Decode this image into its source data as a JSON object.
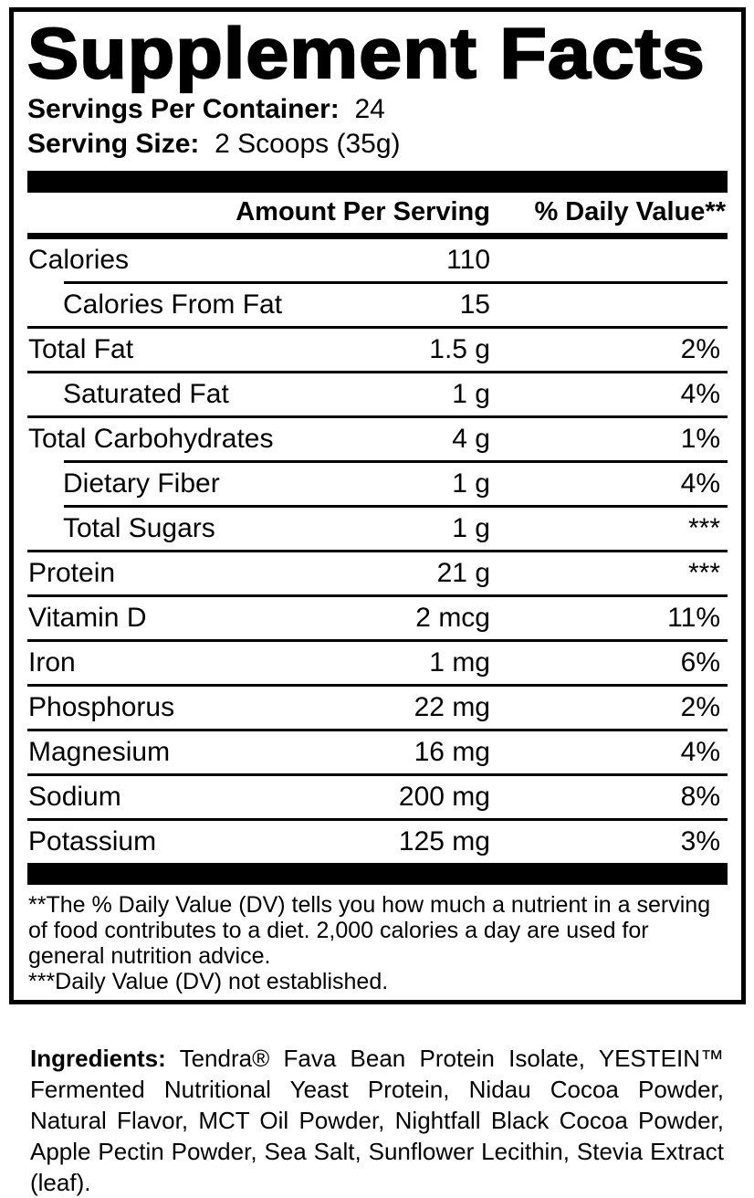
{
  "colors": {
    "ink": "#000000",
    "background": "#ffffff"
  },
  "supplement_facts": {
    "title": "Supplement Facts",
    "servings_per_container": {
      "label": "Servings Per Container:",
      "value": "24"
    },
    "serving_size": {
      "label": "Serving Size:",
      "value": "2 Scoops (35g)"
    },
    "header": {
      "amount": "Amount Per Serving",
      "daily_value": "% Daily Value**"
    },
    "rows": [
      {
        "name": "Calories",
        "amount": "110",
        "daily_value": ""
      },
      {
        "name": "Calories From Fat",
        "amount": "15",
        "daily_value": ""
      },
      {
        "name": "Total Fat",
        "amount": "1.5 g",
        "daily_value": "2%"
      },
      {
        "name": "Saturated Fat",
        "amount": "1 g",
        "daily_value": "4%"
      },
      {
        "name": "Total Carbohydrates",
        "amount": "4 g",
        "daily_value": "1%"
      },
      {
        "name": "Dietary Fiber",
        "amount": "1 g",
        "daily_value": "4%"
      },
      {
        "name": "Total Sugars",
        "amount": "1 g",
        "daily_value": "***"
      },
      {
        "name": "Protein",
        "amount": "21 g",
        "daily_value": "***"
      },
      {
        "name": "Vitamin D",
        "amount": "2 mcg",
        "daily_value": "11%"
      },
      {
        "name": "Iron",
        "amount": "1 mg",
        "daily_value": "6%"
      },
      {
        "name": "Phosphorus",
        "amount": "22 mg",
        "daily_value": "2%"
      },
      {
        "name": "Magnesium",
        "amount": "16 mg",
        "daily_value": "4%"
      },
      {
        "name": "Sodium",
        "amount": "200 mg",
        "daily_value": "8%"
      },
      {
        "name": "Potassium",
        "amount": "125 mg",
        "daily_value": "3%"
      }
    ],
    "footnotes": {
      "daily_value_note": "**The % Daily Value (DV) tells you how much a nutrient in a serving of food contributes to a diet. 2,000 calories a day are used for general nutrition advice.",
      "not_established_note": "***Daily Value (DV) not established."
    }
  },
  "ingredients": {
    "label": "Ingredients:",
    "text": " Tendra® Fava Bean Protein Isolate, YESTEIN™ Fermented Nutritional Yeast Protein, Nidau Cocoa Powder, Natural Flavor, MCT Oil Powder, Nightfall Black Cocoa Powder, Apple Pectin Powder, Sea Salt, Sunflower Lecithin, Stevia Extract (leaf)."
  }
}
